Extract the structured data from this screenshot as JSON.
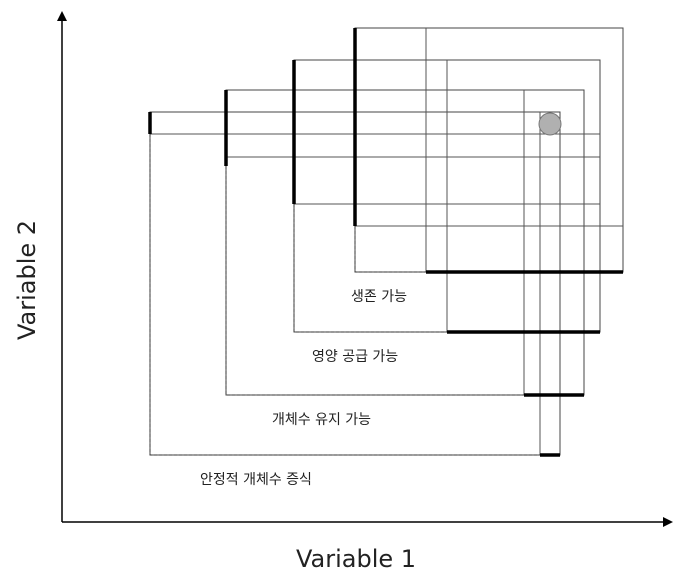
{
  "axes": {
    "x_label": "Variable 1",
    "y_label": "Variable 2"
  },
  "regions": [
    {
      "id": "survival",
      "label": "생존 가능"
    },
    {
      "id": "nutrition",
      "label": "영양 공급 가능"
    },
    {
      "id": "population",
      "label": "개체수 유지 가능"
    },
    {
      "id": "growth",
      "label": "안정적 개체수 증식"
    }
  ],
  "colors": {
    "line": "#000000",
    "grid": "#555555",
    "marker": "#b0b0b0"
  }
}
